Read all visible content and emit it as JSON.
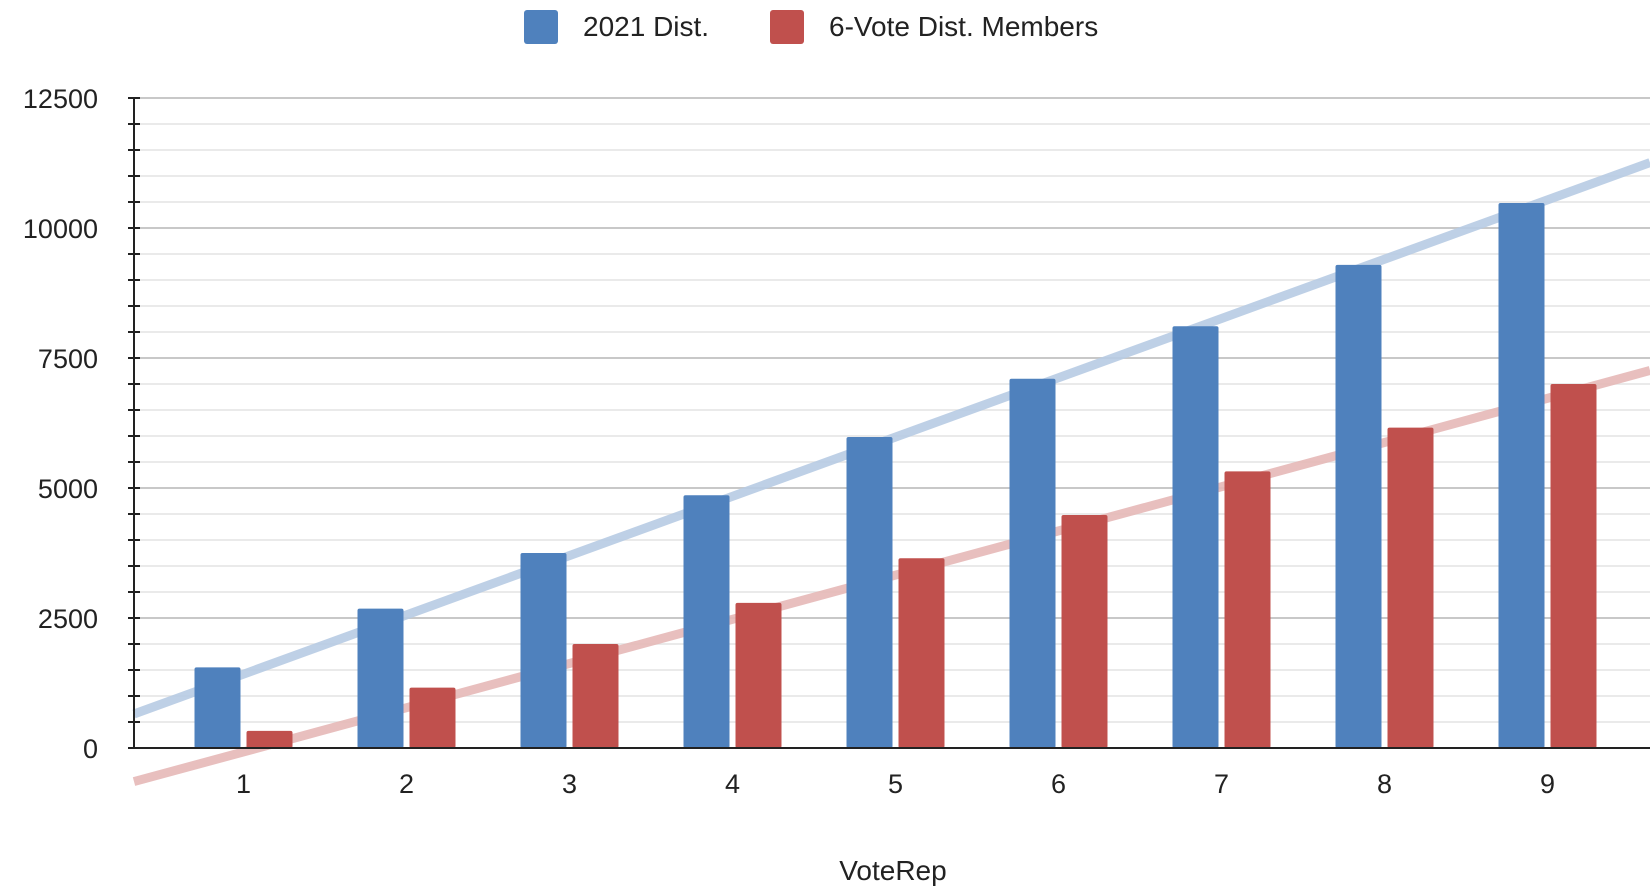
{
  "chart_data": {
    "type": "bar",
    "categories": [
      "1",
      "2",
      "3",
      "4",
      "5",
      "6",
      "7",
      "8",
      "9"
    ],
    "series": [
      {
        "name": "2021 Dist.",
        "color": "#4f81bd",
        "values": [
          1550,
          2680,
          3750,
          4860,
          5980,
          7100,
          8110,
          9290,
          10480
        ]
      },
      {
        "name": "6-Vote Dist. Members",
        "color": "#c0504d",
        "values": [
          330,
          1160,
          2000,
          2790,
          3650,
          4480,
          5320,
          6160,
          7000
        ]
      }
    ],
    "trendlines": [
      {
        "series": "2021 Dist.",
        "color": "#b8cce4",
        "start": 850,
        "slope": 1140
      },
      {
        "series": "6-Vote Dist. Members",
        "color": "#e6b9b8",
        "start": -500,
        "slope": 850
      }
    ],
    "y_ticks": [
      "0",
      "2500",
      "5000",
      "7500",
      "10000",
      "12500"
    ],
    "ylim": [
      0,
      12500
    ],
    "xlabel": "VoteRep",
    "ylabel": "",
    "legend": "top-center",
    "grid": true
  }
}
